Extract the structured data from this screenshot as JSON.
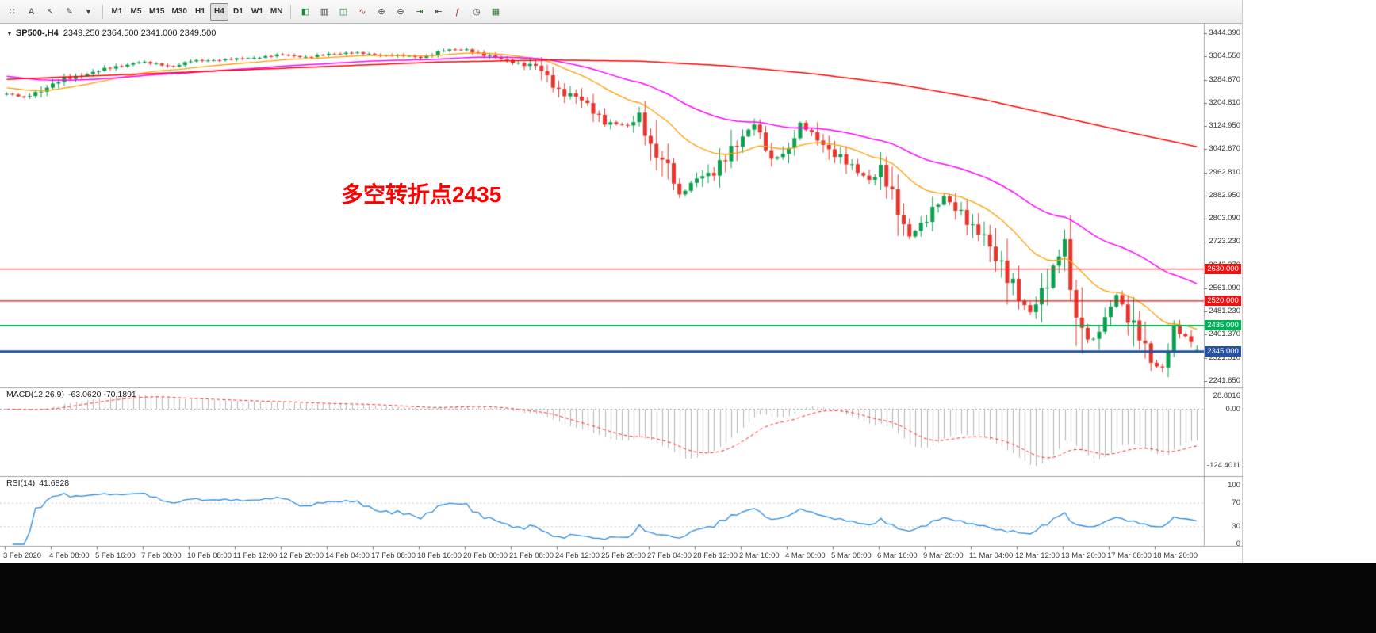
{
  "toolbar": {
    "left_icons": [
      {
        "name": "drag-handle-icon",
        "glyph": "∷"
      },
      {
        "name": "text-tool-icon",
        "glyph": "A"
      },
      {
        "name": "cursor-tool-icon",
        "glyph": "↖"
      },
      {
        "name": "draw-tools-icon",
        "glyph": "✎"
      },
      {
        "name": "dropdown-arrow-icon",
        "glyph": "▾"
      }
    ],
    "timeframes": [
      {
        "label": "M1",
        "active": false
      },
      {
        "label": "M5",
        "active": false
      },
      {
        "label": "M15",
        "active": false
      },
      {
        "label": "M30",
        "active": false
      },
      {
        "label": "H1",
        "active": false
      },
      {
        "label": "H4",
        "active": true
      },
      {
        "label": "D1",
        "active": false
      },
      {
        "label": "W1",
        "active": false
      },
      {
        "label": "MN",
        "active": false
      }
    ],
    "right_icons": [
      {
        "name": "new-order-icon",
        "glyph": "◧",
        "color": "#1a8a3c"
      },
      {
        "name": "bar-chart-icon",
        "glyph": "▥",
        "color": "#444444"
      },
      {
        "name": "candlesticks-icon",
        "glyph": "◫",
        "color": "#1a8a3c"
      },
      {
        "name": "line-chart-icon",
        "glyph": "∿",
        "color": "#b03030"
      },
      {
        "name": "zoom-in-icon",
        "glyph": "⊕",
        "color": "#444444"
      },
      {
        "name": "zoom-out-icon",
        "glyph": "⊖",
        "color": "#444444"
      },
      {
        "name": "auto-scroll-icon",
        "glyph": "⇥",
        "color": "#2f6f2f"
      },
      {
        "name": "chart-shift-icon",
        "glyph": "⇤",
        "color": "#444444"
      },
      {
        "name": "indicators-icon",
        "glyph": "ƒ",
        "color": "#b03030"
      },
      {
        "name": "periods-icon",
        "glyph": "◷",
        "color": "#444444"
      },
      {
        "name": "templates-icon",
        "glyph": "▦",
        "color": "#2f6f2f"
      }
    ]
  },
  "chart": {
    "dropdown_arrow": "▼",
    "symbol_period": "SP500-,H4",
    "ohlc": "2349.250 2364.500 2341.000 2349.500",
    "annotation": {
      "text": "多空转折点2435",
      "color": "#ff0000"
    }
  },
  "chart_data": {
    "type": "candlestick",
    "symbol": "SP500-",
    "period": "H4",
    "bars": 208,
    "last_ohlc": [
      2349.25,
      2364.5,
      2341.0,
      2349.5
    ],
    "candle_up_color": "#0aa04e",
    "candle_down_color": "#e8352c",
    "price_path": [
      [
        0,
        3235
      ],
      [
        3,
        3222
      ],
      [
        10,
        3285
      ],
      [
        17,
        3320
      ],
      [
        23,
        3345
      ],
      [
        29,
        3330
      ],
      [
        32,
        3348
      ],
      [
        36,
        3352
      ],
      [
        40,
        3355
      ],
      [
        44,
        3362
      ],
      [
        48,
        3370
      ],
      [
        52,
        3362
      ],
      [
        56,
        3372
      ],
      [
        60,
        3378
      ],
      [
        64,
        3369
      ],
      [
        68,
        3368
      ],
      [
        72,
        3360
      ],
      [
        76,
        3386
      ],
      [
        80,
        3388
      ],
      [
        83,
        3370
      ],
      [
        88,
        3345
      ],
      [
        92,
        3330
      ],
      [
        96,
        3248
      ],
      [
        99,
        3225
      ],
      [
        104,
        3140
      ],
      [
        108,
        3122
      ],
      [
        110,
        3160
      ],
      [
        112,
        3060
      ],
      [
        115,
        2975
      ],
      [
        117,
        2880
      ],
      [
        120,
        2950
      ],
      [
        123,
        2954
      ],
      [
        126,
        3050
      ],
      [
        128,
        3090
      ],
      [
        130,
        3130
      ],
      [
        133,
        3005
      ],
      [
        136,
        3045
      ],
      [
        138,
        3125
      ],
      [
        141,
        3085
      ],
      [
        144,
        3024
      ],
      [
        147,
        2980
      ],
      [
        150,
        2940
      ],
      [
        152,
        2972
      ],
      [
        154,
        2870
      ],
      [
        157,
        2745
      ],
      [
        160,
        2800
      ],
      [
        163,
        2880
      ],
      [
        166,
        2825
      ],
      [
        168,
        2760
      ],
      [
        170,
        2741
      ],
      [
        173,
        2650
      ],
      [
        176,
        2520
      ],
      [
        178,
        2480
      ],
      [
        181,
        2600
      ],
      [
        184,
        2711
      ],
      [
        185,
        2550
      ],
      [
        187,
        2420
      ],
      [
        189,
        2386
      ],
      [
        191,
        2450
      ],
      [
        193,
        2540
      ],
      [
        195,
        2470
      ],
      [
        197,
        2400
      ],
      [
        199,
        2300
      ],
      [
        201,
        2285
      ],
      [
        203,
        2430
      ],
      [
        205,
        2395
      ],
      [
        207,
        2349.5
      ]
    ],
    "y_axis": {
      "top_value": 3444.39,
      "bottom_value": 2241.65,
      "labels": [
        "3444.390",
        "3364.550",
        "3284.670",
        "3204.810",
        "3124.950",
        "3042.670",
        "2962.810",
        "2882.950",
        "2803.090",
        "2723.230",
        "2643.370",
        "2561.090",
        "2481.230",
        "2401.370",
        "2321.510",
        "2241.650"
      ]
    },
    "x_axis": {
      "labels": [
        "3 Feb 2020",
        "4 Feb 08:00",
        "5 Feb 16:00",
        "7 Feb 00:00",
        "10 Feb 08:00",
        "11 Feb 12:00",
        "12 Feb 20:00",
        "14 Feb 04:00",
        "17 Feb 08:00",
        "18 Feb 16:00",
        "20 Feb 00:00",
        "21 Feb 08:00",
        "24 Feb 12:00",
        "25 Feb 20:00",
        "27 Feb 04:00",
        "28 Feb 12:00",
        "2 Mar 16:00",
        "4 Mar 00:00",
        "5 Mar 08:00",
        "6 Mar 16:00",
        "9 Mar 20:00",
        "11 Mar 04:00",
        "12 Mar 12:00",
        "13 Mar 20:00",
        "17 Mar 08:00",
        "18 Mar 20:00"
      ]
    },
    "hlines": [
      {
        "value": 2630.0,
        "label": "2630.000",
        "color": "#ee1111",
        "width": 1.2
      },
      {
        "value": 2520.0,
        "label": "2520.000",
        "color": "#ee1111",
        "width": 1.2
      },
      {
        "value": 2435.0,
        "label": "2435.000",
        "color": "#00b257",
        "width": 2
      },
      {
        "value": 2345.0,
        "label": "2345.000",
        "color": "#2453a6",
        "width": 3
      }
    ],
    "moving_averages": {
      "fast": {
        "name": "ma-fast",
        "color": "#ff9c00",
        "ema_period": 21,
        "seed": 3258
      },
      "mid": {
        "name": "ma-mid",
        "color": "#ff00ff",
        "ema_period": 55,
        "seed": 3298
      },
      "slow": {
        "name": "ma-slow",
        "color": "#ff0000",
        "path": [
          [
            0,
            3285
          ],
          [
            25,
            3305
          ],
          [
            50,
            3325
          ],
          [
            75,
            3345
          ],
          [
            95,
            3352
          ],
          [
            110,
            3348
          ],
          [
            125,
            3332
          ],
          [
            140,
            3305
          ],
          [
            155,
            3268
          ],
          [
            170,
            3215
          ],
          [
            180,
            3170
          ],
          [
            190,
            3125
          ],
          [
            198,
            3090
          ],
          [
            207,
            3052
          ]
        ]
      }
    },
    "indicators": {
      "macd": {
        "label": "MACD(12,26,9)",
        "values": "-63.0620 -70.1891",
        "params": [
          12,
          26,
          9
        ],
        "axis_labels": [
          {
            "text": "28.8016",
            "value": 28.8016
          },
          {
            "text": "0.00",
            "value": 0
          },
          {
            "text": "-124.4011",
            "value": -124.4011
          }
        ],
        "histogram_color": "#b6b6b6",
        "signal_color": "#ff2222"
      },
      "rsi": {
        "label": "RSI(14)",
        "value": "41.6828",
        "period": 14,
        "levels": [
          70,
          30
        ],
        "axis_labels": [
          {
            "text": "100",
            "value": 100
          },
          {
            "text": "70",
            "value": 70
          },
          {
            "text": "30",
            "value": 30
          },
          {
            "text": "0",
            "value": 0
          }
        ],
        "line_color": "#2a8ae0"
      }
    }
  }
}
